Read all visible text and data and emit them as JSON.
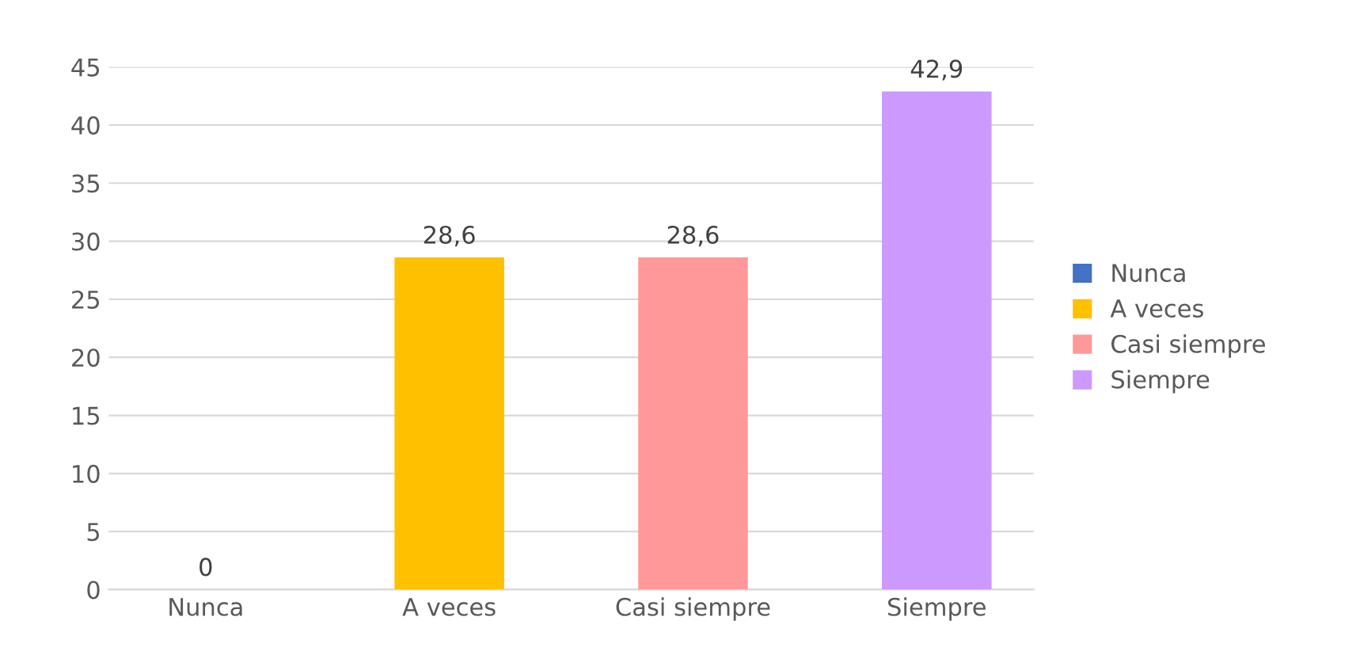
{
  "chart_data": {
    "type": "bar",
    "categories": [
      "Nunca",
      "A veces",
      "Casi siempre",
      "Siempre"
    ],
    "series": [
      {
        "name": "Nunca",
        "color": "#4472c4",
        "values": [
          0,
          null,
          null,
          null
        ],
        "value_labels": [
          "0",
          null,
          null,
          null
        ]
      },
      {
        "name": "A veces",
        "color": "#ffc000",
        "values": [
          null,
          28.6,
          null,
          null
        ],
        "value_labels": [
          null,
          "28,6",
          null,
          null
        ]
      },
      {
        "name": "Casi siempre",
        "color": "#ff9999",
        "values": [
          null,
          null,
          28.6,
          null
        ],
        "value_labels": [
          null,
          null,
          "28,6",
          null
        ]
      },
      {
        "name": "Siempre",
        "color": "#cc99ff",
        "values": [
          null,
          null,
          null,
          42.9
        ],
        "value_labels": [
          null,
          null,
          null,
          "42,9"
        ]
      }
    ],
    "ylim": [
      0,
      45
    ],
    "yticks": [
      0,
      5,
      10,
      15,
      20,
      25,
      30,
      35,
      40,
      45
    ],
    "grid": "y",
    "legend": "right"
  }
}
